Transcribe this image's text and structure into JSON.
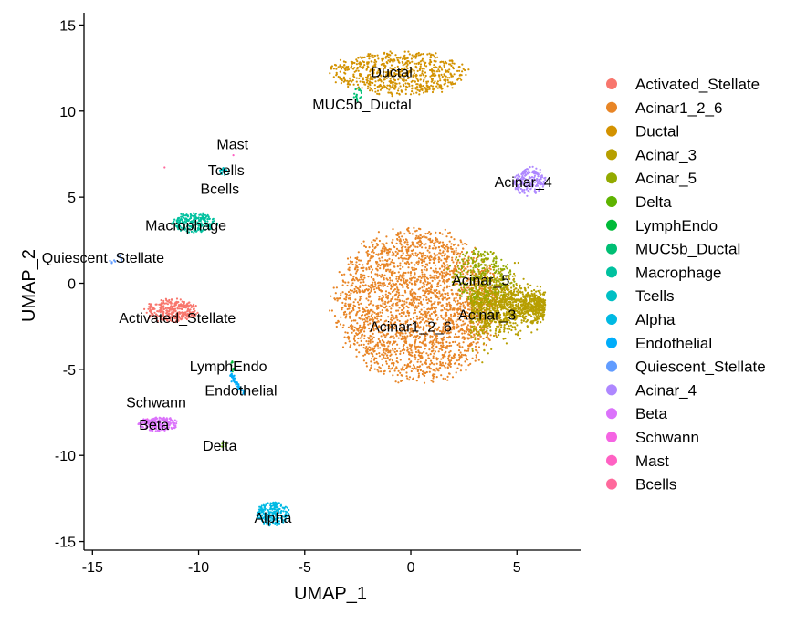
{
  "chart_data": {
    "type": "scatter",
    "xlabel": "UMAP_1",
    "ylabel": "UMAP_2",
    "xlim": [
      -15.4,
      8.0
    ],
    "ylim": [
      -15.5,
      15.5
    ],
    "x_ticks": [
      -15,
      -10,
      -5,
      0,
      5
    ],
    "y_ticks": [
      -15,
      -10,
      -5,
      0,
      5,
      10,
      15
    ],
    "grid": false,
    "legend_position": "right",
    "legend": [
      {
        "name": "Activated_Stellate",
        "color": "#F8766D"
      },
      {
        "name": "Acinar1_2_6",
        "color": "#E88526"
      },
      {
        "name": "Ductal",
        "color": "#D39200"
      },
      {
        "name": "Acinar_3",
        "color": "#B79F00"
      },
      {
        "name": "Acinar_5",
        "color": "#93AA00"
      },
      {
        "name": "Delta",
        "color": "#5EB300"
      },
      {
        "name": "LymphEndo",
        "color": "#00BA38"
      },
      {
        "name": "MUC5b_Ductal",
        "color": "#00BF74"
      },
      {
        "name": "Macrophage",
        "color": "#00C19F"
      },
      {
        "name": "Tcells",
        "color": "#00BFC4"
      },
      {
        "name": "Alpha",
        "color": "#00B9E3"
      },
      {
        "name": "Endothelial",
        "color": "#00ADFA"
      },
      {
        "name": "Quiescent_Stellate",
        "color": "#619CFF"
      },
      {
        "name": "Acinar_4",
        "color": "#AE87FF"
      },
      {
        "name": "Beta",
        "color": "#DB72FB"
      },
      {
        "name": "Schwann",
        "color": "#F564E3"
      },
      {
        "name": "Mast",
        "color": "#FF61C3"
      },
      {
        "name": "Bcells",
        "color": "#FF699C"
      }
    ],
    "clusters": [
      {
        "name": "Acinar1_2_6",
        "color": "#E88526",
        "shape": "blob",
        "cx": 0.3,
        "cy": -1.2,
        "sx": 2.3,
        "sy": 2.6,
        "n": 2600,
        "label": "Acinar1_2_6",
        "label_x": 0.0,
        "label_y": -2.5
      },
      {
        "name": "Acinar_3",
        "color": "#B79F00",
        "shape": "wedge",
        "cx": 3.6,
        "cy": -1.3,
        "sx": 2.6,
        "sy": 1.3,
        "n": 1300,
        "label": "Acinar_3",
        "label_x": 3.6,
        "label_y": -1.8
      },
      {
        "name": "Acinar_5",
        "color": "#93AA00",
        "shape": "blob",
        "cx": 3.3,
        "cy": 0.4,
        "sx": 0.9,
        "sy": 0.9,
        "n": 250,
        "label": "Acinar_5",
        "label_x": 3.3,
        "label_y": 0.2
      },
      {
        "name": "Ductal",
        "color": "#D39200",
        "shape": "blob",
        "cx": -0.6,
        "cy": 12.2,
        "sx": 1.9,
        "sy": 0.75,
        "n": 700,
        "label": "Ductal",
        "label_x": -0.9,
        "label_y": 12.3
      },
      {
        "name": "MUC5b_Ductal",
        "color": "#00BF74",
        "shape": "blob",
        "cx": -2.5,
        "cy": 10.9,
        "sx": 0.12,
        "sy": 0.3,
        "n": 18,
        "label": "MUC5b_Ductal",
        "label_x": -2.3,
        "label_y": 10.4
      },
      {
        "name": "Acinar_4",
        "color": "#AE87FF",
        "shape": "blob",
        "cx": 5.6,
        "cy": 5.9,
        "sx": 0.45,
        "sy": 0.5,
        "n": 180,
        "label": "Acinar_4",
        "label_x": 5.3,
        "label_y": 5.9
      },
      {
        "name": "Macrophage",
        "color": "#00C19F",
        "shape": "blob",
        "cx": -10.2,
        "cy": 3.5,
        "sx": 0.6,
        "sy": 0.35,
        "n": 220,
        "label": "Macrophage",
        "label_x": -10.6,
        "label_y": 3.4
      },
      {
        "name": "Tcells",
        "color": "#00BFC4",
        "shape": "blob",
        "cx": -8.8,
        "cy": 6.5,
        "sx": 0.15,
        "sy": 0.15,
        "n": 16,
        "label": "Tcells",
        "label_x": -8.7,
        "label_y": 6.6
      },
      {
        "name": "Mast",
        "color": "#FF61C3",
        "shape": "blob",
        "cx": -8.4,
        "cy": 7.4,
        "sx": 0.05,
        "sy": 0.05,
        "n": 1,
        "label": "Mast",
        "label_x": -8.4,
        "label_y": 8.1
      },
      {
        "name": "Bcells",
        "color": "#FF699C",
        "shape": "blob",
        "cx": -11.6,
        "cy": 6.7,
        "sx": 0.05,
        "sy": 0.05,
        "n": 1,
        "label": "Bcells",
        "label_x": -9.0,
        "label_y": 5.5
      },
      {
        "name": "Quiescent_Stellate",
        "color": "#619CFF",
        "shape": "blob",
        "cx": -14.0,
        "cy": 1.4,
        "sx": 0.3,
        "sy": 0.15,
        "n": 10,
        "label": "Quiescent_Stellate",
        "label_x": -14.5,
        "label_y": 1.5
      },
      {
        "name": "Activated_Stellate",
        "color": "#F8766D",
        "shape": "blob",
        "cx": -11.3,
        "cy": -1.6,
        "sx": 0.75,
        "sy": 0.4,
        "n": 320,
        "label": "Activated_Stellate",
        "label_x": -11.0,
        "label_y": -2.0
      },
      {
        "name": "LymphEndo",
        "color": "#00BA38",
        "shape": "blob",
        "cx": -8.4,
        "cy": -4.8,
        "sx": 0.05,
        "sy": 0.2,
        "n": 8,
        "label": "LymphEndo",
        "label_x": -8.6,
        "label_y": -4.8
      },
      {
        "name": "Endothelial",
        "color": "#00ADFA",
        "shape": "streak",
        "cx": -8.2,
        "cy": -5.8,
        "sx": 0.25,
        "sy": 0.6,
        "n": 45,
        "label": "Endothelial",
        "label_x": -8.0,
        "label_y": -6.2
      },
      {
        "name": "Schwann",
        "color": "#F564E3",
        "shape": "blob",
        "cx": -12.4,
        "cy": -7.9,
        "sx": 0.05,
        "sy": 0.05,
        "n": 2,
        "label": "Schwann",
        "label_x": -12.0,
        "label_y": -6.9
      },
      {
        "name": "Beta",
        "color": "#DB72FB",
        "shape": "blob",
        "cx": -11.9,
        "cy": -8.2,
        "sx": 0.55,
        "sy": 0.25,
        "n": 200,
        "label": "Beta",
        "label_x": -12.1,
        "label_y": -8.2
      },
      {
        "name": "Delta",
        "color": "#5EB300",
        "shape": "blob",
        "cx": -8.8,
        "cy": -9.4,
        "sx": 0.08,
        "sy": 0.1,
        "n": 6,
        "label": "Delta",
        "label_x": -9.0,
        "label_y": -9.4
      },
      {
        "name": "Alpha",
        "color": "#00B9E3",
        "shape": "blob",
        "cx": -6.5,
        "cy": -13.4,
        "sx": 0.45,
        "sy": 0.4,
        "n": 220,
        "label": "Alpha",
        "label_x": -6.5,
        "label_y": -13.6
      }
    ]
  }
}
